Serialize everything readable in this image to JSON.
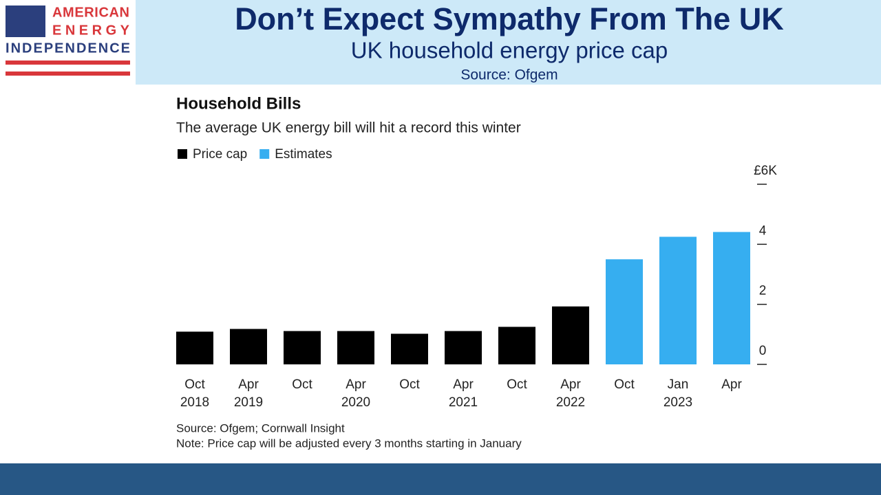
{
  "header": {
    "logo": [
      "AMERICAN",
      "ENERGY",
      "INDEPENDENCE"
    ],
    "title": "Don’t Expect Sympathy From The UK",
    "subtitle": "UK household energy price cap",
    "source": "Source: Ofgem"
  },
  "chart_data": {
    "type": "bar",
    "title": "Household Bills",
    "subtitle": "The average UK energy bill will hit a record this winter",
    "categories": [
      "Oct 2018",
      "Apr 2019",
      "Oct",
      "Apr 2020",
      "Oct",
      "Apr 2021",
      "Oct",
      "Apr 2022",
      "Oct",
      "Jan 2023",
      "Apr"
    ],
    "series": [
      {
        "name": "Price cap",
        "color": "#000000",
        "values": [
          1.09,
          1.18,
          1.11,
          1.11,
          1.02,
          1.11,
          1.25,
          1.93,
          null,
          null,
          null
        ]
      },
      {
        "name": "Estimates",
        "color": "#36aef0",
        "values": [
          null,
          null,
          null,
          null,
          null,
          null,
          null,
          null,
          3.5,
          4.25,
          4.41
        ]
      }
    ],
    "ylim": [
      0,
      6
    ],
    "yticks": [
      0,
      2,
      4,
      {
        "value": 6,
        "label": "£6K"
      }
    ],
    "notes": [
      "Source: Ofgem; Cornwall Insight",
      "Note: Price cap will be adjusted every 3 months starting in January"
    ]
  }
}
